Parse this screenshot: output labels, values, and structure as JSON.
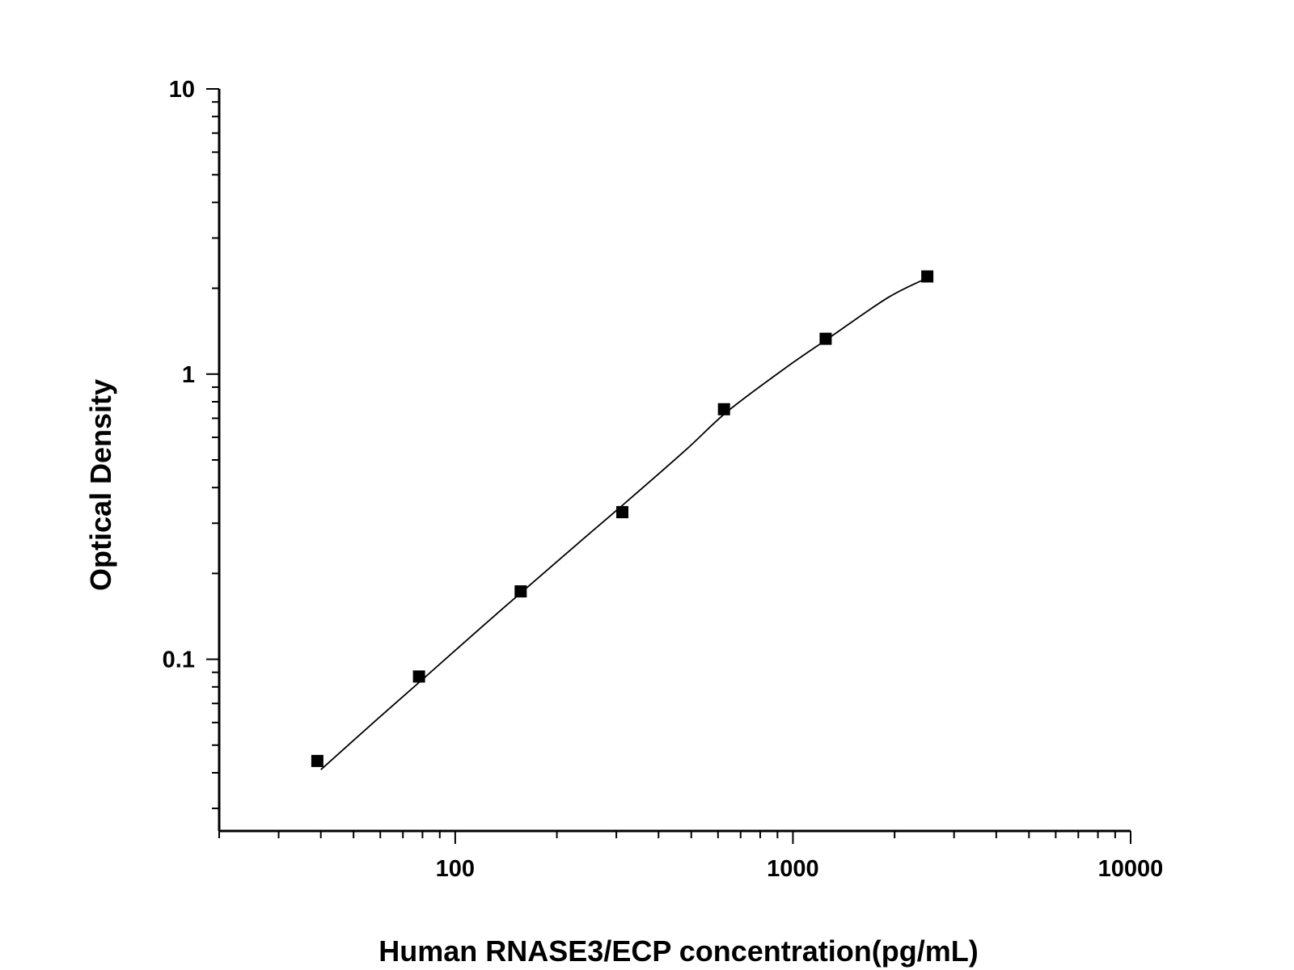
{
  "chart_data": {
    "type": "scatter",
    "title": "",
    "xlabel": "Human RNASE3/ECP concentration(pg/mL)",
    "ylabel": "Optical Density",
    "x_scale": "log",
    "y_scale": "log",
    "xlim": [
      20,
      10000
    ],
    "ylim": [
      0.025,
      10
    ],
    "x_ticks": [
      100,
      1000,
      10000
    ],
    "x_tick_labels": [
      "100",
      "1000",
      "10000"
    ],
    "y_ticks": [
      0.1,
      1,
      10
    ],
    "y_tick_labels": [
      "0.1",
      "1",
      "10"
    ],
    "grid": false,
    "series": [
      {
        "kind": "points",
        "marker": "square",
        "color": "#000000",
        "x": [
          39.06,
          78.13,
          156.25,
          312.5,
          625,
          1250,
          2500
        ],
        "y": [
          0.044,
          0.087,
          0.173,
          0.328,
          0.753,
          1.33,
          2.2
        ]
      },
      {
        "kind": "fit-curve",
        "color": "#000000",
        "x": [
          40,
          60,
          80,
          120,
          160,
          240,
          320,
          480,
          640,
          960,
          1280,
          1920,
          2560
        ],
        "y": [
          0.041,
          0.063,
          0.085,
          0.13,
          0.175,
          0.265,
          0.355,
          0.54,
          0.74,
          1.06,
          1.34,
          1.86,
          2.2
        ]
      }
    ]
  }
}
